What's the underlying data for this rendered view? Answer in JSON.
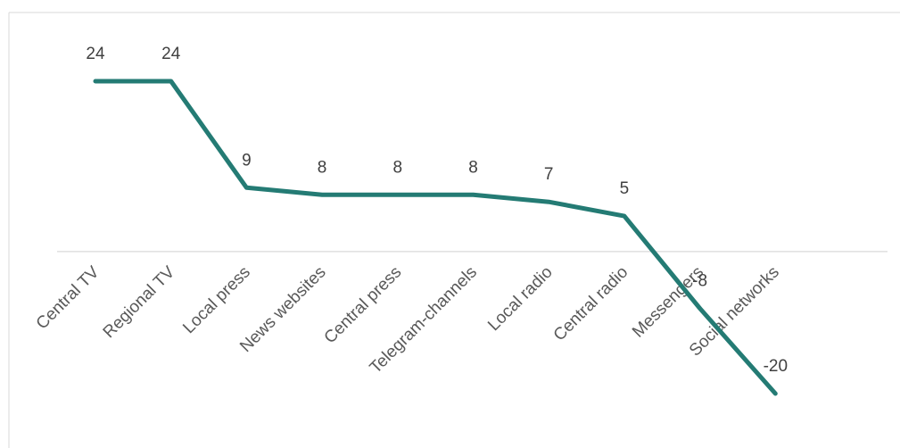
{
  "chart_data": {
    "type": "line",
    "categories": [
      "Central TV",
      "Regional TV",
      "Local press",
      "News websites",
      "Central press",
      "Telegram-channels",
      "Local radio",
      "Central radio",
      "Messengers",
      "Social networks"
    ],
    "series": [
      {
        "values": [
          24,
          24,
          9,
          8,
          8,
          8,
          7,
          5,
          -8,
          -20
        ]
      }
    ],
    "data_labels": [
      "24",
      "24",
      "9",
      "8",
      "8",
      "8",
      "7",
      "5",
      "-8",
      "-20"
    ],
    "title": "",
    "xlabel": "",
    "ylabel": "",
    "ylim": [
      -20,
      24
    ],
    "grid": false,
    "legend": "none",
    "colors": {
      "line": "#247b74",
      "axis": "#d9d9d9",
      "frame": "#d9d9d9",
      "data_label": "#404040",
      "tick_label": "#595959"
    }
  }
}
